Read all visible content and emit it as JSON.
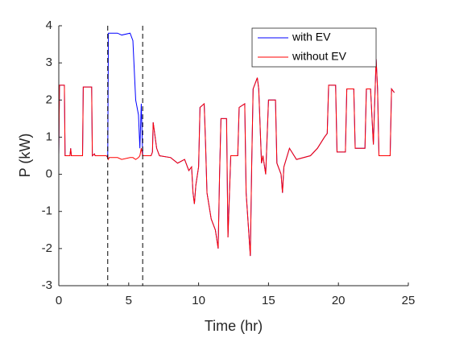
{
  "chart_data": {
    "type": "line",
    "xlabel": "Time (hr)",
    "ylabel": "P (kW)",
    "x": [
      0,
      0.05,
      0.4,
      0.45,
      0.8,
      0.85,
      0.9,
      1.7,
      1.75,
      2.35,
      2.4,
      2.55,
      2.6,
      3.4,
      3.5,
      3.55,
      3.6,
      4.2,
      4.5,
      5.1,
      5.3,
      5.5,
      5.7,
      5.8,
      5.9,
      6.0,
      6.6,
      6.7,
      6.75,
      7.0,
      7.2,
      8.0,
      8.5,
      9.0,
      9.3,
      9.5,
      9.6,
      9.7,
      9.8,
      10.0,
      10.1,
      10.4,
      10.5,
      10.6,
      10.9,
      11.2,
      11.4,
      11.5,
      11.6,
      12.0,
      12.1,
      12.3,
      12.8,
      12.9,
      13.3,
      13.4,
      13.7,
      13.8,
      13.9,
      14.2,
      14.3,
      14.5,
      14.6,
      14.8,
      15.0,
      15.5,
      15.6,
      15.9,
      16.0,
      16.1,
      16.5,
      17.0,
      18.0,
      18.5,
      19.0,
      19.2,
      19.3,
      19.8,
      19.9,
      20.5,
      20.6,
      21.1,
      21.2,
      21.9,
      22.0,
      22.3,
      22.5,
      22.6,
      22.7,
      22.8,
      22.9,
      23.7,
      23.8,
      24.0
    ],
    "series": [
      {
        "name": "with EV",
        "color": "#0000ff",
        "values": [
          0.5,
          2.4,
          2.4,
          0.5,
          0.5,
          0.7,
          0.5,
          0.5,
          2.35,
          2.35,
          0.5,
          0.55,
          0.5,
          0.5,
          0.45,
          3.8,
          3.8,
          3.8,
          3.75,
          3.8,
          3.6,
          2.0,
          1.6,
          0.7,
          1.9,
          0.5,
          0.5,
          0.6,
          1.4,
          0.7,
          0.5,
          0.45,
          0.3,
          0.4,
          0.1,
          0.2,
          -0.5,
          -0.8,
          -0.3,
          0.2,
          1.8,
          1.9,
          0.8,
          -0.5,
          -1.2,
          -1.5,
          -2.0,
          0.0,
          1.5,
          1.5,
          -1.7,
          0.5,
          0.5,
          1.8,
          1.9,
          -0.5,
          -2.2,
          0.3,
          2.3,
          2.6,
          2.3,
          0.3,
          0.5,
          0.0,
          2.0,
          2.0,
          0.3,
          0.0,
          -0.5,
          0.2,
          0.7,
          0.4,
          0.5,
          0.7,
          1.0,
          1.1,
          2.4,
          2.4,
          0.6,
          0.6,
          2.3,
          2.3,
          0.7,
          0.7,
          2.3,
          2.3,
          0.8,
          2.0,
          3.1,
          2.3,
          0.5,
          0.5,
          2.3,
          2.2
        ]
      },
      {
        "name": "without EV",
        "color": "#ff0000",
        "values": [
          0.5,
          2.4,
          2.4,
          0.5,
          0.5,
          0.7,
          0.5,
          0.5,
          2.35,
          2.35,
          0.5,
          0.55,
          0.5,
          0.5,
          0.45,
          0.4,
          0.45,
          0.45,
          0.4,
          0.45,
          0.45,
          0.4,
          0.45,
          0.5,
          0.7,
          0.5,
          0.5,
          0.6,
          1.4,
          0.7,
          0.5,
          0.45,
          0.3,
          0.4,
          0.1,
          0.2,
          -0.5,
          -0.8,
          -0.3,
          0.2,
          1.8,
          1.9,
          0.8,
          -0.5,
          -1.2,
          -1.5,
          -2.0,
          0.0,
          1.5,
          1.5,
          -1.7,
          0.5,
          0.5,
          1.8,
          1.9,
          -0.5,
          -2.2,
          0.3,
          2.3,
          2.6,
          2.3,
          0.3,
          0.5,
          0.0,
          2.0,
          2.0,
          0.3,
          0.0,
          -0.5,
          0.2,
          0.7,
          0.4,
          0.5,
          0.7,
          1.0,
          1.1,
          2.4,
          2.4,
          0.6,
          0.6,
          2.3,
          2.3,
          0.7,
          0.7,
          2.3,
          2.3,
          0.8,
          2.0,
          3.1,
          2.3,
          0.5,
          0.5,
          2.3,
          2.2
        ]
      }
    ],
    "vlines": [
      3.5,
      6
    ],
    "xlim": [
      0,
      25
    ],
    "xticks": [
      0,
      5,
      10,
      15,
      20,
      25
    ],
    "ylim": [
      -3,
      4
    ],
    "yticks": [
      -3,
      -2,
      -1,
      0,
      1,
      2,
      3,
      4
    ],
    "grid": false,
    "legend": "northeast"
  }
}
